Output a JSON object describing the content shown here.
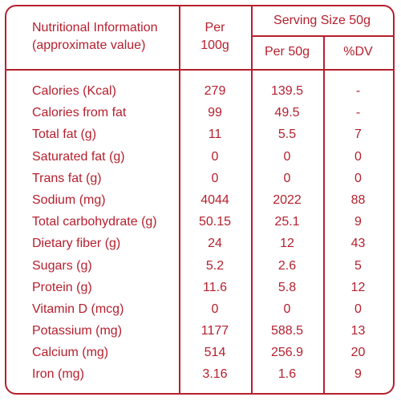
{
  "header": {
    "nutrition_line1": "Nutritional Information",
    "nutrition_line2": "(approximate value)",
    "per_line1": "Per",
    "per_line2": "100g",
    "serving_size": "Serving Size 50g",
    "per_50g": "Per 50g",
    "dv": "%DV"
  },
  "rows": [
    {
      "label": "Calories (Kcal)",
      "per100": "279",
      "per50": "139.5",
      "dv": "-"
    },
    {
      "label": "Calories from fat",
      "per100": "99",
      "per50": "49.5",
      "dv": "-"
    },
    {
      "label": "Total fat (g)",
      "per100": "11",
      "per50": "5.5",
      "dv": "7"
    },
    {
      "label": "Saturated fat (g)",
      "per100": "0",
      "per50": "0",
      "dv": "0"
    },
    {
      "label": "Trans fat (g)",
      "per100": "0",
      "per50": "0",
      "dv": "0"
    },
    {
      "label": "Sodium (mg)",
      "per100": "4044",
      "per50": "2022",
      "dv": "88"
    },
    {
      "label": "Total carbohydrate (g)",
      "per100": "50.15",
      "per50": "25.1",
      "dv": "9"
    },
    {
      "label": "Dietary fiber (g)",
      "per100": "24",
      "per50": "12",
      "dv": "43"
    },
    {
      "label": "Sugars (g)",
      "per100": "5.2",
      "per50": "2.6",
      "dv": "5"
    },
    {
      "label": "Protein (g)",
      "per100": "11.6",
      "per50": "5.8",
      "dv": "12"
    },
    {
      "label": "Vitamin D (mcg)",
      "per100": "0",
      "per50": "0",
      "dv": "0"
    },
    {
      "label": "Potassium (mg)",
      "per100": "1177",
      "per50": "588.5",
      "dv": "13"
    },
    {
      "label": "Calcium (mg)",
      "per100": "514",
      "per50": "256.9",
      "dv": "20"
    },
    {
      "label": "Iron (mg)",
      "per100": "3.16",
      "per50": "1.6",
      "dv": "9"
    }
  ],
  "colors": {
    "accent": "#b5202e",
    "background": "#ffffff"
  }
}
